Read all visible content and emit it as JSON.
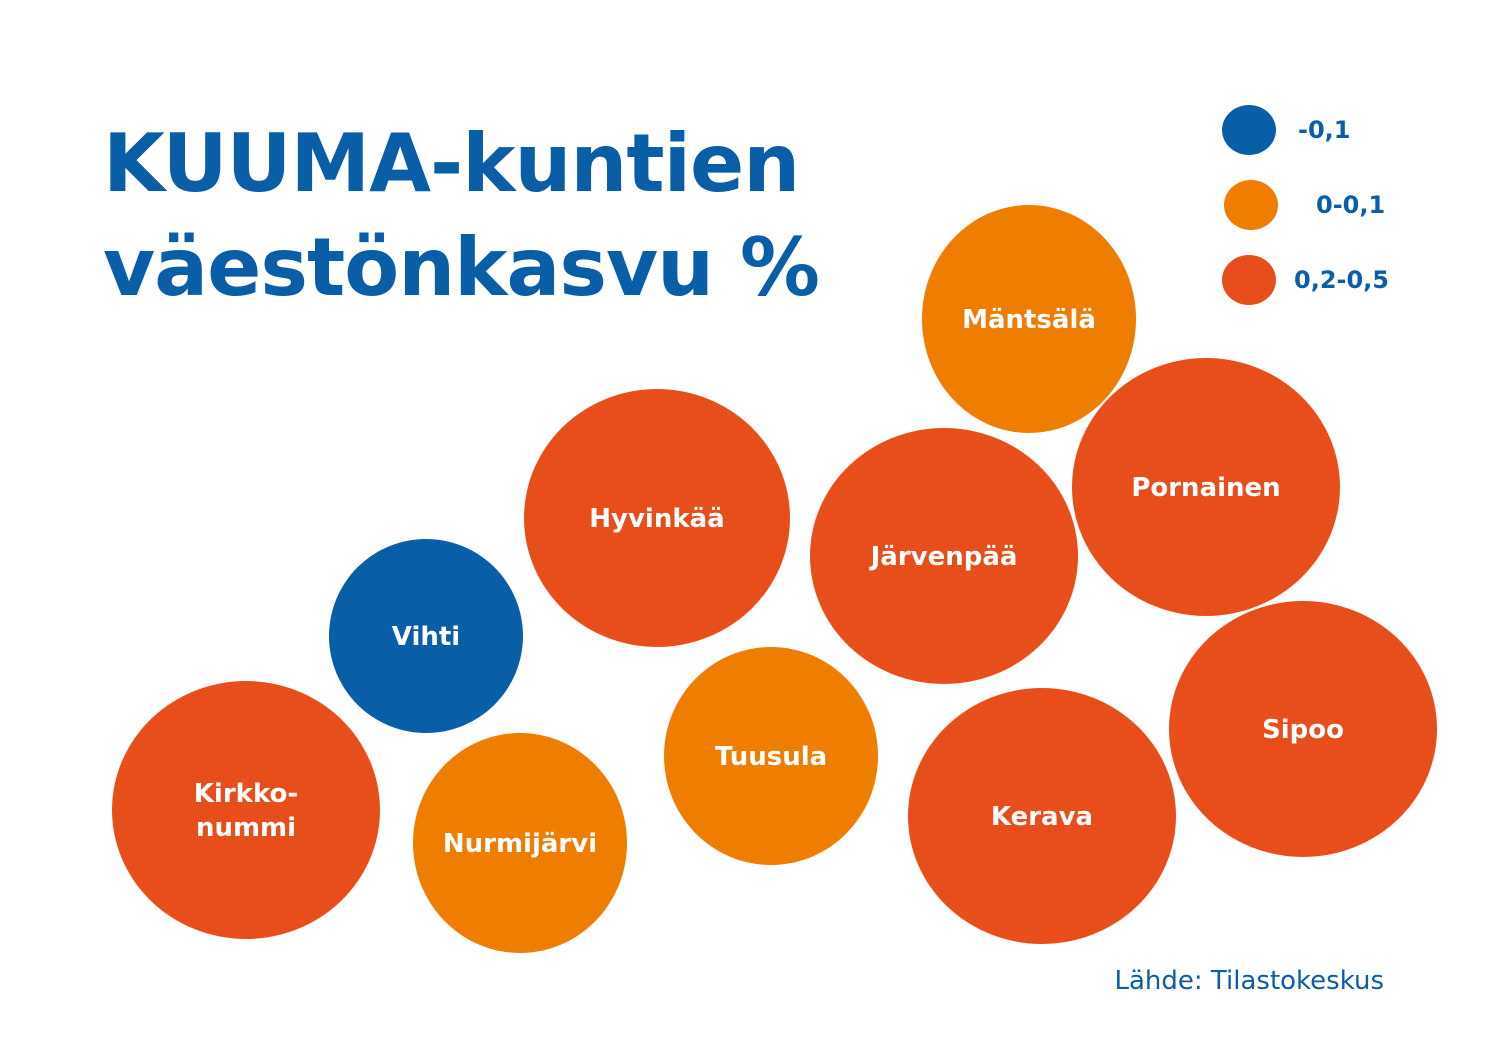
{
  "title_line1": "KUUMA-kuntien",
  "title_line2": "väestönkasvu %",
  "source": "Lähde: Tilastokeskus",
  "colors": {
    "text": "#0a5ea8",
    "negative": "#0a5ea8",
    "low": "#ef7d00",
    "high": "#e84e1b"
  },
  "chart_data": {
    "type": "bubble",
    "legend": [
      {
        "label": "-0,1",
        "category": "negative",
        "color": "#0a5ea8"
      },
      {
        "label": "0-0,1",
        "category": "low",
        "color": "#ef7d00"
      },
      {
        "label": "0,2-0,5",
        "category": "high",
        "color": "#e84e1b"
      }
    ],
    "legend_position": "top-right",
    "municipalities": [
      {
        "name": "Mäntsälä",
        "lines": [
          "Mäntsälä"
        ],
        "category": "low"
      },
      {
        "name": "Pornainen",
        "lines": [
          "Pornainen"
        ],
        "category": "high"
      },
      {
        "name": "Hyvinkää",
        "lines": [
          "Hyvinkää"
        ],
        "category": "high"
      },
      {
        "name": "Järvenpää",
        "lines": [
          "Järvenpää"
        ],
        "category": "high"
      },
      {
        "name": "Vihti",
        "lines": [
          "Vihti"
        ],
        "category": "negative"
      },
      {
        "name": "Sipoo",
        "lines": [
          "Sipoo"
        ],
        "category": "high"
      },
      {
        "name": "Tuusula",
        "lines": [
          "Tuusula"
        ],
        "category": "low"
      },
      {
        "name": "Kerava",
        "lines": [
          "Kerava"
        ],
        "category": "high"
      },
      {
        "name": "Kirkkonummi",
        "lines": [
          "Kirkko-",
          "nummi"
        ],
        "category": "high"
      },
      {
        "name": "Nurmijärvi",
        "lines": [
          "Nurmijärvi"
        ],
        "category": "low"
      }
    ]
  }
}
